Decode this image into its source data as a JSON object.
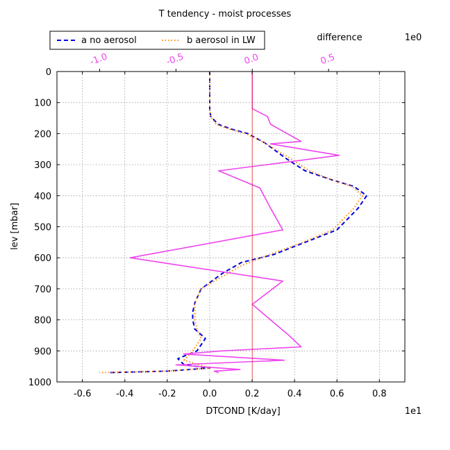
{
  "chart_data": {
    "type": "line",
    "title": "T tendency - moist processes",
    "xlabel": "DTCOND [K/day]",
    "ylabel": "lev [mbar]",
    "x_scale_label": "1e1",
    "top_axis_label": "difference",
    "top_scale_label": "1e0",
    "xlim": [
      -0.72,
      0.92
    ],
    "ylim": [
      1000,
      0
    ],
    "xticks": [
      -0.6,
      -0.4,
      -0.2,
      0.0,
      0.2,
      0.4,
      0.6,
      0.8
    ],
    "xtick_labels": [
      "-0.6",
      "-0.4",
      "-0.2",
      "0.0",
      "0.2",
      "0.4",
      "0.6",
      "0.8"
    ],
    "yticks": [
      0,
      100,
      200,
      300,
      400,
      500,
      600,
      700,
      800,
      900,
      1000
    ],
    "ytick_labels": [
      "0",
      "100",
      "200",
      "300",
      "400",
      "500",
      "600",
      "700",
      "800",
      "900",
      "1000"
    ],
    "top_xlim": [
      -1.28,
      1.0
    ],
    "top_xticks": [
      -1.0,
      -0.5,
      0.0,
      0.5
    ],
    "top_xtick_labels": [
      "-1.0",
      "-0.5",
      "0.0",
      "0.5"
    ],
    "grid": true,
    "legend_position": "top-left",
    "series": [
      {
        "name": "a no aerosol",
        "color": "#0000dd",
        "style": "dashed",
        "x": [
          0.0,
          0.0,
          0.0,
          0.0,
          0.005,
          0.04,
          0.1,
          0.18,
          0.26,
          0.36,
          0.45,
          0.58,
          0.68,
          0.74,
          0.7,
          0.6,
          0.45,
          0.3,
          0.15,
          0.06,
          -0.04,
          -0.07,
          -0.08,
          -0.08,
          -0.07,
          -0.02,
          -0.06,
          -0.15,
          -0.12,
          0.0,
          -0.2,
          -0.48
        ],
        "y": [
          0,
          50,
          100,
          120,
          145,
          170,
          185,
          200,
          230,
          280,
          320,
          350,
          370,
          400,
          440,
          510,
          550,
          590,
          615,
          650,
          700,
          745,
          775,
          800,
          830,
          860,
          900,
          925,
          945,
          955,
          965,
          970
        ]
      },
      {
        "name": "b aerosol in LW",
        "color": "#ff8800",
        "style": "dotted",
        "x": [
          0.0,
          0.0,
          0.0,
          0.0,
          0.005,
          0.03,
          0.09,
          0.17,
          0.26,
          0.38,
          0.47,
          0.58,
          0.67,
          0.72,
          0.68,
          0.58,
          0.42,
          0.26,
          0.15,
          0.06,
          -0.04,
          -0.07,
          -0.07,
          -0.07,
          -0.06,
          -0.04,
          -0.08,
          -0.12,
          0.0,
          -0.2,
          -0.52
        ],
        "y": [
          0,
          50,
          100,
          120,
          145,
          170,
          185,
          200,
          230,
          280,
          320,
          350,
          370,
          400,
          440,
          510,
          555,
          595,
          625,
          660,
          700,
          745,
          775,
          800,
          830,
          860,
          900,
          930,
          955,
          965,
          970
        ]
      },
      {
        "name": "difference",
        "color": "#ee44ee",
        "style": "solid",
        "axis": "top",
        "x": [
          0.0,
          0.0,
          0.0,
          0.0,
          0.1,
          0.12,
          0.32,
          0.12,
          0.57,
          -0.22,
          0.05,
          0.12,
          0.2,
          -0.8,
          0.2,
          0.0,
          0.12,
          0.24,
          0.32,
          -0.2,
          -0.45,
          0.21,
          -0.5,
          -0.08,
          -0.25,
          -0.22
        ],
        "y": [
          0,
          50,
          100,
          120,
          145,
          170,
          225,
          233,
          270,
          320,
          375,
          440,
          510,
          600,
          675,
          750,
          800,
          850,
          887,
          900,
          910,
          930,
          945,
          960,
          965,
          970
        ]
      }
    ]
  }
}
